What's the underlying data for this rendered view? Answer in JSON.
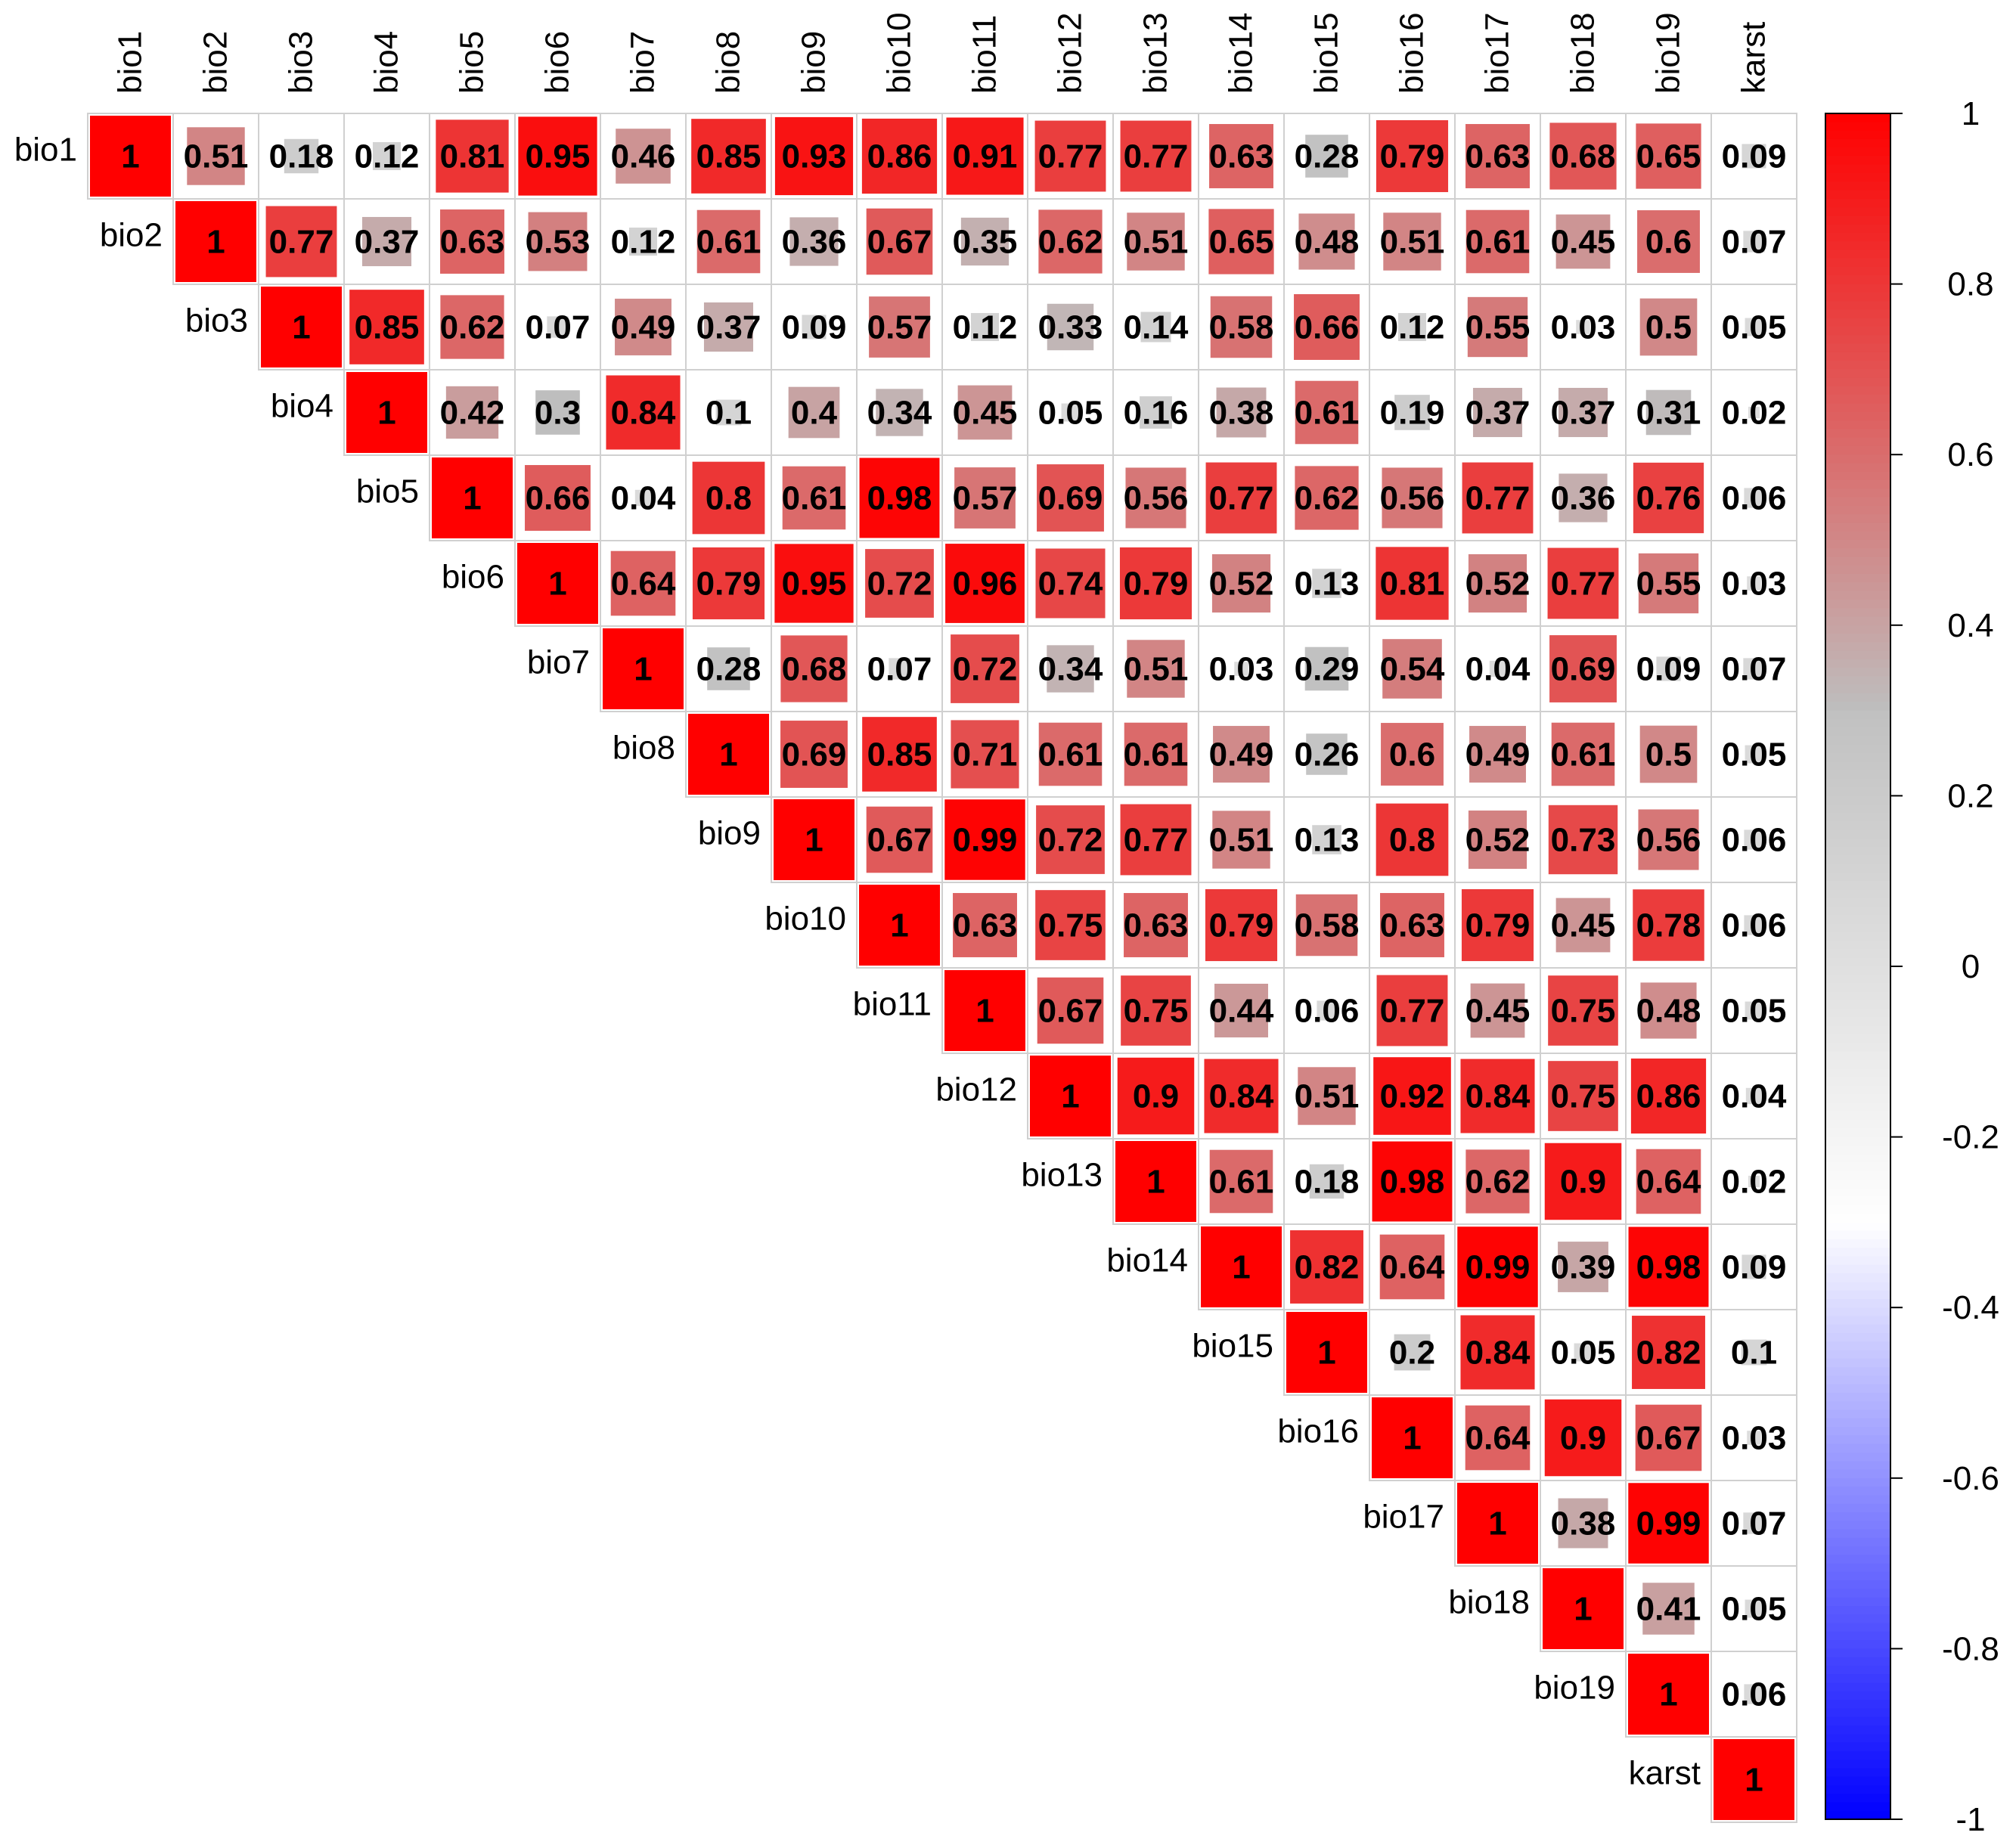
{
  "chart_data": {
    "type": "heatmap",
    "variables": [
      "bio1",
      "bio2",
      "bio3",
      "bio4",
      "bio5",
      "bio6",
      "bio7",
      "bio8",
      "bio9",
      "bio10",
      "bio11",
      "bio12",
      "bio13",
      "bio14",
      "bio15",
      "bio16",
      "bio17",
      "bio18",
      "bio19",
      "karst"
    ],
    "matrix_upper": [
      [
        "1",
        "0.51",
        "0.18",
        "0.12",
        "0.81",
        "0.95",
        "0.46",
        "0.85",
        "0.93",
        "0.86",
        "0.91",
        "0.77",
        "0.77",
        "0.63",
        "0.28",
        "0.79",
        "0.63",
        "0.68",
        "0.65",
        "0.09"
      ],
      [
        "1",
        "0.77",
        "0.37",
        "0.63",
        "0.53",
        "0.12",
        "0.61",
        "0.36",
        "0.67",
        "0.35",
        "0.62",
        "0.51",
        "0.65",
        "0.48",
        "0.51",
        "0.61",
        "0.45",
        "0.6",
        "0.07"
      ],
      [
        "1",
        "0.85",
        "0.62",
        "0.07",
        "0.49",
        "0.37",
        "0.09",
        "0.57",
        "0.12",
        "0.33",
        "0.14",
        "0.58",
        "0.66",
        "0.12",
        "0.55",
        "0.03",
        "0.5",
        "0.05"
      ],
      [
        "1",
        "0.42",
        "0.3",
        "0.84",
        "0.1",
        "0.4",
        "0.34",
        "0.45",
        "0.05",
        "0.16",
        "0.38",
        "0.61",
        "0.19",
        "0.37",
        "0.37",
        "0.31",
        "0.02"
      ],
      [
        "1",
        "0.66",
        "0.04",
        "0.8",
        "0.61",
        "0.98",
        "0.57",
        "0.69",
        "0.56",
        "0.77",
        "0.62",
        "0.56",
        "0.77",
        "0.36",
        "0.76",
        "0.06"
      ],
      [
        "1",
        "0.64",
        "0.79",
        "0.95",
        "0.72",
        "0.96",
        "0.74",
        "0.79",
        "0.52",
        "0.13",
        "0.81",
        "0.52",
        "0.77",
        "0.55",
        "0.03"
      ],
      [
        "1",
        "0.28",
        "0.68",
        "0.07",
        "0.72",
        "0.34",
        "0.51",
        "0.03",
        "0.29",
        "0.54",
        "0.04",
        "0.69",
        "0.09",
        "0.07"
      ],
      [
        "1",
        "0.69",
        "0.85",
        "0.71",
        "0.61",
        "0.61",
        "0.49",
        "0.26",
        "0.6",
        "0.49",
        "0.61",
        "0.5",
        "0.05"
      ],
      [
        "1",
        "0.67",
        "0.99",
        "0.72",
        "0.77",
        "0.51",
        "0.13",
        "0.8",
        "0.52",
        "0.73",
        "0.56",
        "0.06"
      ],
      [
        "1",
        "0.63",
        "0.75",
        "0.63",
        "0.79",
        "0.58",
        "0.63",
        "0.79",
        "0.45",
        "0.78",
        "0.06"
      ],
      [
        "1",
        "0.67",
        "0.75",
        "0.44",
        "0.06",
        "0.77",
        "0.45",
        "0.75",
        "0.48",
        "0.05"
      ],
      [
        "1",
        "0.9",
        "0.84",
        "0.51",
        "0.92",
        "0.84",
        "0.75",
        "0.86",
        "0.04"
      ],
      [
        "1",
        "0.61",
        "0.18",
        "0.98",
        "0.62",
        "0.9",
        "0.64",
        "0.02"
      ],
      [
        "1",
        "0.82",
        "0.64",
        "0.99",
        "0.39",
        "0.98",
        "0.09"
      ],
      [
        "1",
        "0.2",
        "0.84",
        "0.05",
        "0.82",
        "0.1"
      ],
      [
        "1",
        "0.64",
        "0.9",
        "0.67",
        "0.03"
      ],
      [
        "1",
        "0.38",
        "0.99",
        "0.07"
      ],
      [
        "1",
        "0.41",
        "0.05"
      ],
      [
        "1",
        "0.06"
      ],
      [
        "1"
      ]
    ],
    "colorbar": {
      "range": [
        -1,
        1
      ],
      "ticks": [
        "1",
        "0.8",
        "0.6",
        "0.4",
        "0.2",
        "0",
        "-0.2",
        "-0.4",
        "-0.6",
        "-0.8",
        "-1"
      ],
      "colors": {
        "high": "#ff0000",
        "mid_grey": "#c0c0c0",
        "zero": "#ffffff",
        "low": "#0000ff"
      }
    },
    "grid": true
  }
}
